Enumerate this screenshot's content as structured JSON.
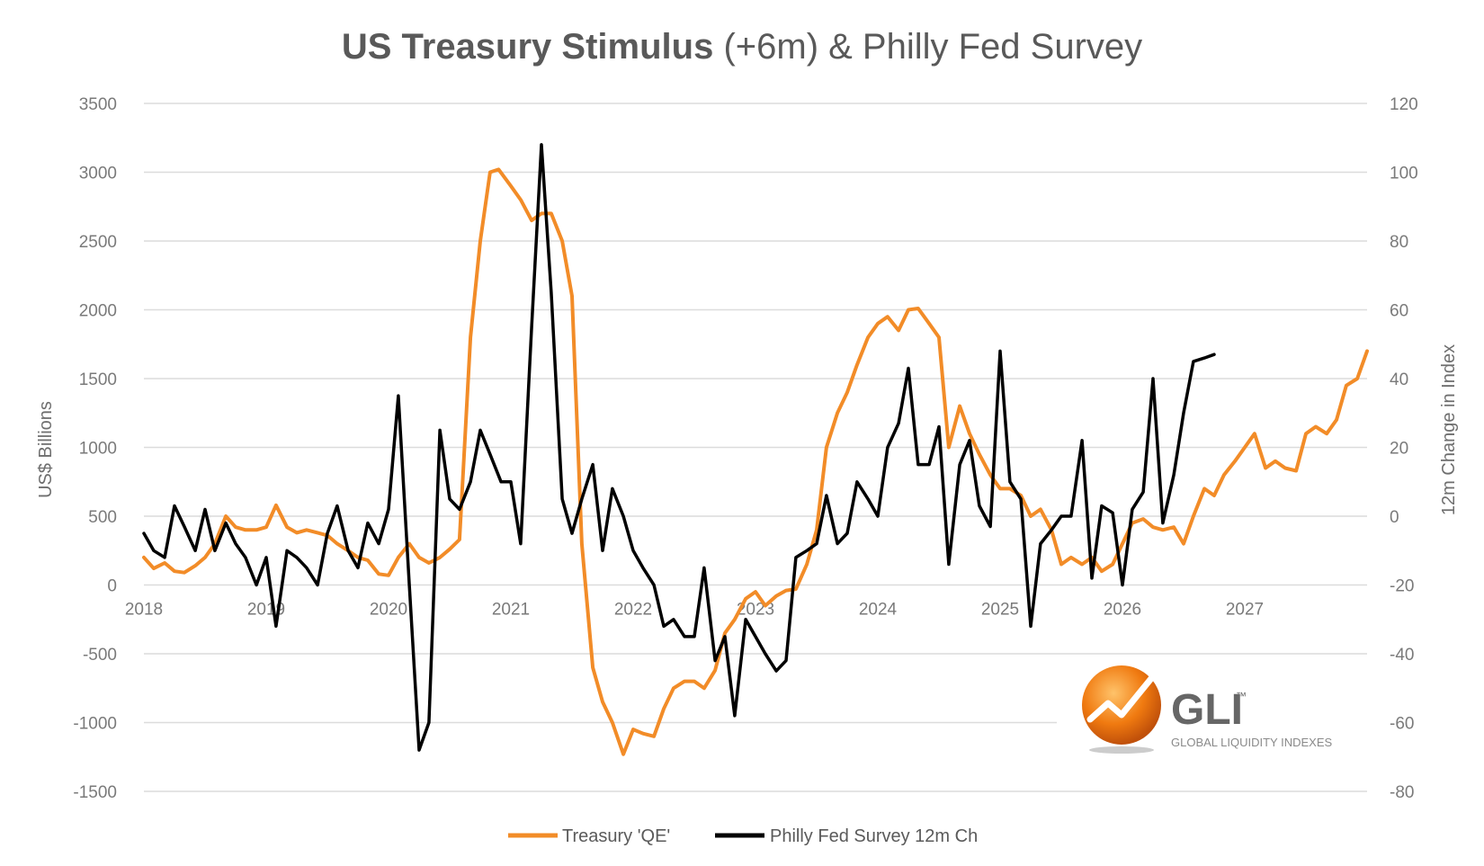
{
  "chart_data": {
    "type": "line",
    "title_bold": "US Treasury Stimulus",
    "title_rest": " (+6m) & Philly Fed Survey",
    "ylabel": "US$ Billions",
    "y2label": "12m Change in Index",
    "ylim": [
      -1500,
      3500
    ],
    "y2lim": [
      -80,
      120
    ],
    "yticks": [
      "3500",
      "3000",
      "2500",
      "2000",
      "1500",
      "1000",
      "500",
      "0",
      "-500",
      "-1000",
      "-1500"
    ],
    "y2ticks": [
      "120",
      "100",
      "80",
      "60",
      "40",
      "20",
      "0",
      "-20",
      "-40",
      "-60",
      "-80"
    ],
    "xlabels": [
      "2018",
      "2019",
      "2020",
      "2021",
      "2022",
      "2023",
      "2024",
      "2025",
      "2026",
      "2027"
    ],
    "xlim": [
      2018.0,
      2028.0
    ],
    "legend_position": "bottom",
    "grid": true,
    "colors": {
      "treasury": "#f28c28",
      "philly": "#000000",
      "logo": "#f07a10"
    },
    "logo": {
      "text": "GLI",
      "tm": "™",
      "subtitle": "GLOBAL LIQUIDITY INDEXES"
    },
    "series": [
      {
        "name": "Treasury 'QE'",
        "axis": "left",
        "x": [
          2018.0,
          2018.08,
          2018.17,
          2018.25,
          2018.33,
          2018.42,
          2018.5,
          2018.58,
          2018.67,
          2018.75,
          2018.83,
          2018.92,
          2019.0,
          2019.08,
          2019.17,
          2019.25,
          2019.33,
          2019.42,
          2019.5,
          2019.58,
          2019.67,
          2019.75,
          2019.83,
          2019.92,
          2020.0,
          2020.08,
          2020.17,
          2020.25,
          2020.33,
          2020.42,
          2020.5,
          2020.58,
          2020.67,
          2020.75,
          2020.83,
          2020.9,
          2021.0,
          2021.08,
          2021.17,
          2021.25,
          2021.33,
          2021.42,
          2021.5,
          2021.58,
          2021.67,
          2021.75,
          2021.83,
          2021.92,
          2022.0,
          2022.08,
          2022.17,
          2022.25,
          2022.33,
          2022.42,
          2022.5,
          2022.58,
          2022.67,
          2022.75,
          2022.83,
          2022.92,
          2023.0,
          2023.08,
          2023.17,
          2023.25,
          2023.33,
          2023.42,
          2023.5,
          2023.58,
          2023.67,
          2023.75,
          2023.83,
          2023.92,
          2024.0,
          2024.08,
          2024.17,
          2024.25,
          2024.33,
          2024.42,
          2024.5,
          2024.58,
          2024.67,
          2024.75,
          2024.83,
          2024.92,
          2025.0,
          2025.08,
          2025.17,
          2025.25,
          2025.33,
          2025.42,
          2025.5,
          2025.58,
          2025.67,
          2025.75,
          2025.83,
          2025.92,
          2026.0,
          2026.08,
          2026.17,
          2026.25,
          2026.33,
          2026.42,
          2026.5,
          2026.58,
          2026.67,
          2026.75,
          2026.83,
          2026.92,
          2027.0,
          2027.08,
          2027.17,
          2027.25,
          2027.33,
          2027.42,
          2027.5,
          2027.58,
          2027.67,
          2027.75,
          2027.83,
          2027.92,
          2028.0
        ],
        "y": [
          200,
          120,
          160,
          100,
          90,
          140,
          200,
          300,
          500,
          420,
          400,
          400,
          420,
          580,
          420,
          380,
          400,
          380,
          360,
          300,
          250,
          200,
          180,
          80,
          70,
          200,
          300,
          200,
          160,
          200,
          260,
          330,
          1800,
          2500,
          3000,
          3020,
          2900,
          2800,
          2650,
          2700,
          2700,
          2500,
          2100,
          300,
          -600,
          -850,
          -1000,
          -1230,
          -1050,
          -1080,
          -1100,
          -900,
          -750,
          -700,
          -700,
          -750,
          -620,
          -350,
          -250,
          -100,
          -50,
          -150,
          -80,
          -40,
          -30,
          150,
          400,
          1000,
          1250,
          1400,
          1600,
          1800,
          1900,
          1950,
          1850,
          2000,
          2010,
          1900,
          1800,
          1000,
          1300,
          1100,
          950,
          800,
          700,
          700,
          650,
          500,
          550,
          400,
          150,
          200,
          150,
          200,
          100,
          150,
          300,
          450,
          480,
          420,
          400,
          420,
          300,
          500,
          700,
          650,
          800,
          900,
          1000,
          1100,
          850,
          900,
          850,
          830,
          1100,
          1150,
          1100,
          1200,
          1450,
          1500,
          1700
        ]
      },
      {
        "name": "Philly Fed Survey 12m Ch",
        "axis": "right",
        "x": [
          2018.0,
          2018.08,
          2018.17,
          2018.25,
          2018.33,
          2018.42,
          2018.5,
          2018.58,
          2018.67,
          2018.75,
          2018.83,
          2018.92,
          2019.0,
          2019.08,
          2019.17,
          2019.25,
          2019.33,
          2019.42,
          2019.5,
          2019.58,
          2019.67,
          2019.75,
          2019.83,
          2019.92,
          2020.0,
          2020.08,
          2020.17,
          2020.25,
          2020.33,
          2020.42,
          2020.5,
          2020.58,
          2020.67,
          2020.75,
          2020.83,
          2020.92,
          2021.0,
          2021.08,
          2021.17,
          2021.25,
          2021.33,
          2021.42,
          2021.5,
          2021.58,
          2021.67,
          2021.75,
          2021.83,
          2021.92,
          2022.0,
          2022.08,
          2022.17,
          2022.25,
          2022.33,
          2022.42,
          2022.5,
          2022.58,
          2022.67,
          2022.75,
          2022.83,
          2022.92,
          2023.0,
          2023.08,
          2023.17,
          2023.25,
          2023.33,
          2023.42,
          2023.5,
          2023.58,
          2023.67,
          2023.75,
          2023.83,
          2023.92,
          2024.0,
          2024.08,
          2024.17,
          2024.25,
          2024.33,
          2024.42,
          2024.5,
          2024.58,
          2024.67,
          2024.75,
          2024.83,
          2024.92,
          2025.0,
          2025.08,
          2025.17,
          2025.25,
          2025.33,
          2025.42,
          2025.5,
          2025.58,
          2025.67,
          2025.75,
          2025.83,
          2025.92,
          2026.0,
          2026.08,
          2026.17,
          2026.25,
          2026.33,
          2026.42,
          2026.5,
          2026.58,
          2026.67,
          2026.75
        ],
        "y": [
          -5,
          -10,
          -12,
          3,
          -3,
          -10,
          2,
          -10,
          -2,
          -8,
          -12,
          -20,
          -12,
          -32,
          -10,
          -12,
          -15,
          -20,
          -5,
          3,
          -10,
          -15,
          -2,
          -8,
          2,
          35,
          -20,
          -68,
          -60,
          25,
          5,
          2,
          10,
          25,
          18,
          10,
          10,
          -8,
          55,
          108,
          65,
          5,
          -5,
          5,
          15,
          -10,
          8,
          0,
          -10,
          -15,
          -20,
          -32,
          -30,
          -35,
          -35,
          -15,
          -42,
          -35,
          -58,
          -30,
          -35,
          -40,
          -45,
          -42,
          -12,
          -10,
          -8,
          6,
          -8,
          -5,
          10,
          5,
          0,
          20,
          27,
          43,
          15,
          15,
          26,
          -14,
          15,
          22,
          3,
          -3,
          48,
          10,
          5,
          -32,
          -8,
          -4,
          0,
          0,
          22,
          -18,
          3,
          1,
          -20,
          2,
          7,
          40,
          -2,
          12,
          30,
          45,
          46,
          47
        ]
      }
    ]
  }
}
